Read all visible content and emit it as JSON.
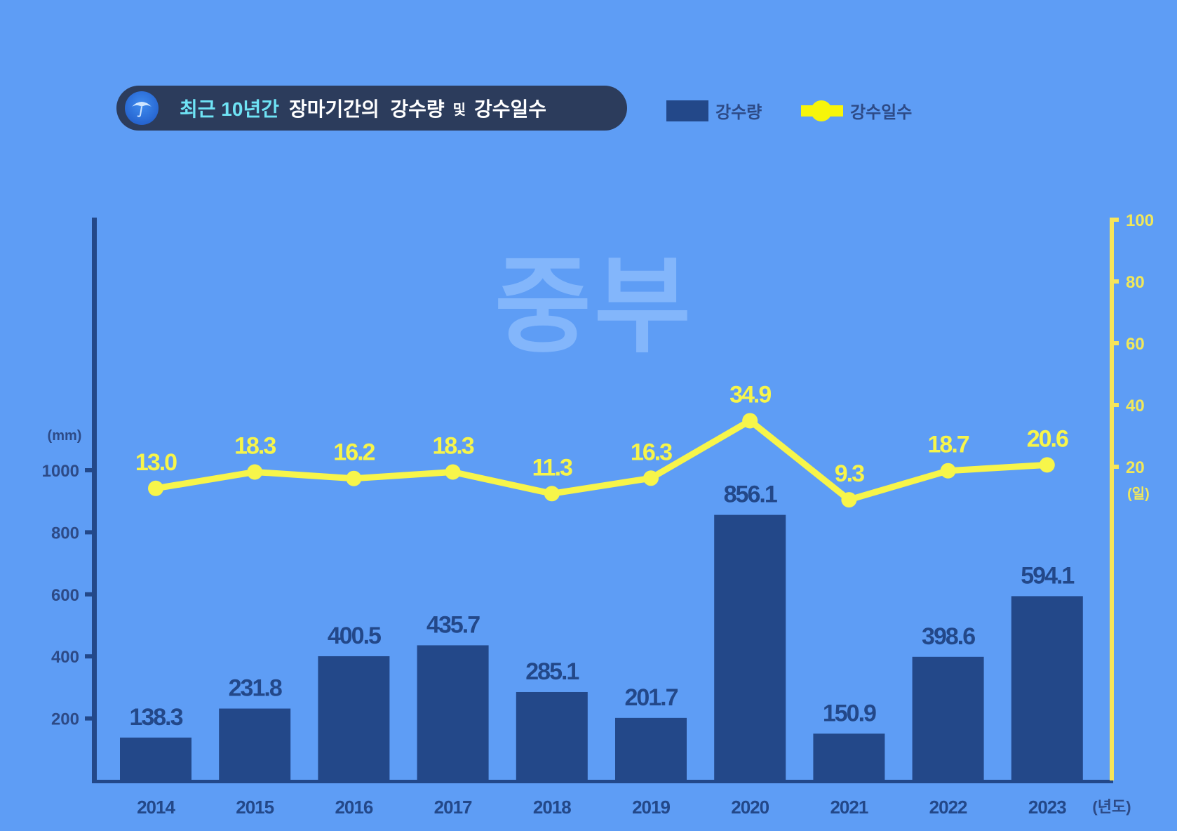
{
  "title": {
    "icon": "umbrella-icon",
    "accent": "최근 10년간",
    "main": "장마기간의  강수량",
    "conj": "및",
    "tail": "강수일수"
  },
  "legend": {
    "bar_label": "강수량",
    "line_label": "강수일수"
  },
  "watermark": "중부",
  "colors": {
    "background": "#5e9df5",
    "bar": "#234889",
    "line": "#f7f54a",
    "axis_left": "#234889",
    "axis_right": "#f7e55a",
    "title_pill": "#2c3c5c",
    "title_accent": "#6fe3f5"
  },
  "chart_data": {
    "type": "bar",
    "title": "최근 10년간 장마기간의 강수량 및 강수일수",
    "region": "중부",
    "categories": [
      "2014",
      "2015",
      "2016",
      "2017",
      "2018",
      "2019",
      "2020",
      "2021",
      "2022",
      "2023"
    ],
    "series": [
      {
        "name": "강수량",
        "type": "bar",
        "axis": "left",
        "unit": "mm",
        "values": [
          138.3,
          231.8,
          400.5,
          435.7,
          285.1,
          201.7,
          856.1,
          150.9,
          398.6,
          594.1
        ],
        "labels": [
          "138.3",
          "231.8",
          "400.5",
          "435.7",
          "285.1",
          "201.7",
          "856.1",
          "150.9",
          "398.6",
          "594.1"
        ]
      },
      {
        "name": "강수일수",
        "type": "line",
        "axis": "right",
        "unit": "일",
        "values": [
          13.0,
          18.3,
          16.2,
          18.3,
          11.3,
          16.3,
          34.9,
          9.3,
          18.7,
          20.6
        ],
        "labels": [
          "13.0",
          "18.3",
          "16.2",
          "18.3",
          "11.3",
          "16.3",
          "34.9",
          "9.3",
          "18.7",
          "20.6"
        ]
      }
    ],
    "xlabel": "(년도)",
    "ylabel": "(mm)",
    "y2label": "(일)",
    "ylim": [
      0,
      1000
    ],
    "yticks": [
      200,
      400,
      600,
      800,
      1000
    ],
    "y2ticks": [
      20,
      40,
      60,
      80,
      100
    ],
    "grid": false,
    "legend_position": "top"
  }
}
